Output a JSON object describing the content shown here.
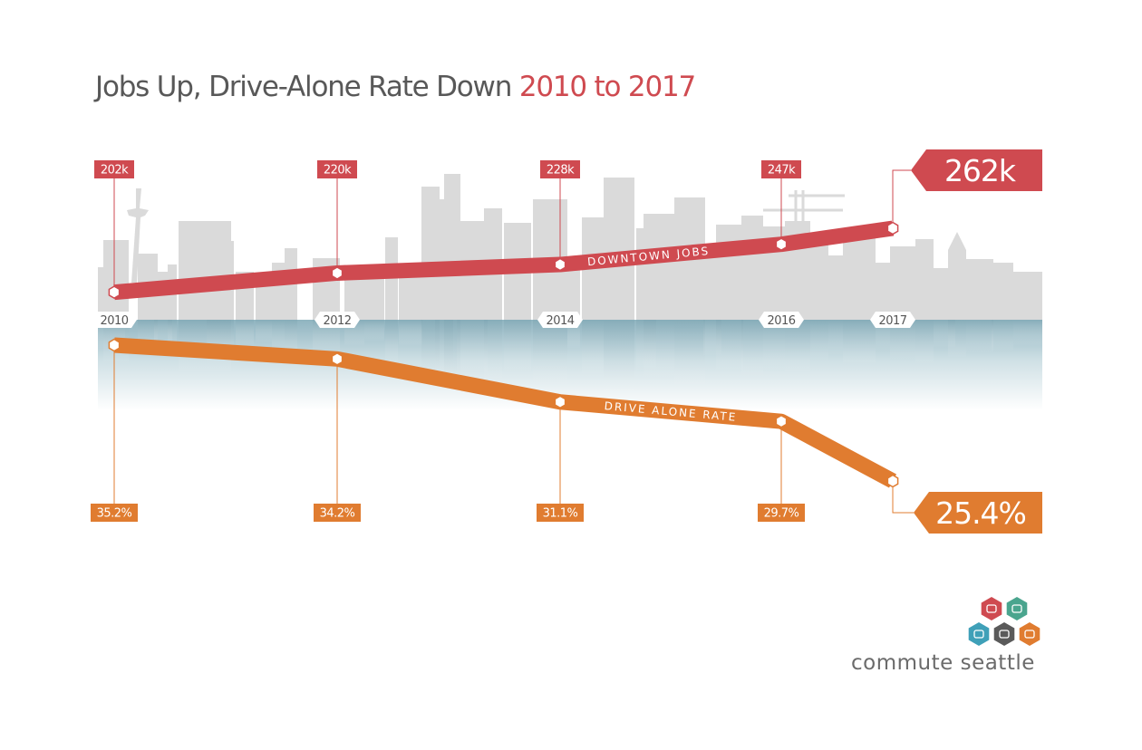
{
  "title": {
    "main": "Jobs Up, Drive-Alone Rate Down",
    "accent": "2010 to 2017"
  },
  "colors": {
    "jobs": "#cf4a50",
    "drive_alone": "#e07c30",
    "skyline": "#dadada",
    "water_top": "#8fb4c0",
    "title_text": "#585858"
  },
  "chart_data": {
    "type": "line",
    "x": [
      "2010",
      "2012",
      "2014",
      "2016",
      "2017"
    ],
    "series": [
      {
        "name": "DOWNTOWN JOBS",
        "labels": [
          "202k",
          "220k",
          "228k",
          "247k",
          "262k"
        ],
        "values": [
          202000,
          220000,
          228000,
          247000,
          262000
        ],
        "unit": "jobs"
      },
      {
        "name": "DRIVE ALONE RATE",
        "labels": [
          "35.2%",
          "34.2%",
          "31.1%",
          "29.7%",
          "25.4%"
        ],
        "values": [
          35.2,
          34.2,
          31.1,
          29.7,
          25.4
        ],
        "unit": "%"
      }
    ],
    "xlabel": "",
    "ylabel": "",
    "grid": false,
    "legend": "none"
  },
  "brand": {
    "name": "commute seattle",
    "logo_icons": [
      "bus-icon",
      "walk-icon",
      "streetcar-icon",
      "train-icon",
      "bike-icon"
    ]
  }
}
